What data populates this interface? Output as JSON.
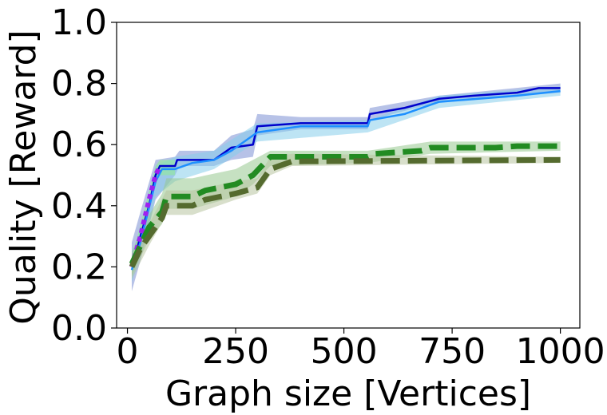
{
  "chart_data": {
    "type": "line",
    "title": "",
    "xlabel": "Graph size [Vertices]",
    "ylabel": "Quality [Reward]",
    "xlim": [
      -25,
      1045
    ],
    "ylim": [
      0.0,
      1.0
    ],
    "xticks": [
      0,
      250,
      500,
      750,
      1000
    ],
    "xtick_labels": [
      "0",
      "250",
      "500",
      "750",
      "1000"
    ],
    "yticks": [
      0.0,
      0.2,
      0.4,
      0.6,
      0.8,
      1.0
    ],
    "ytick_labels": [
      "0.0",
      "0.2",
      "0.4",
      "0.6",
      "0.8",
      "1.0"
    ],
    "grid": false,
    "legend": null,
    "series": [
      {
        "style": "solid",
        "color": "#0000cc",
        "band_color": "#7b8fd4",
        "points": [
          [
            10,
            0.2
          ],
          [
            15,
            0.22
          ],
          [
            30,
            0.3
          ],
          [
            50,
            0.4
          ],
          [
            65,
            0.5
          ],
          [
            75,
            0.53
          ],
          [
            110,
            0.53
          ],
          [
            115,
            0.55
          ],
          [
            200,
            0.55
          ],
          [
            240,
            0.59
          ],
          [
            290,
            0.6
          ],
          [
            300,
            0.66
          ],
          [
            400,
            0.67
          ],
          [
            555,
            0.67
          ],
          [
            560,
            0.7
          ],
          [
            640,
            0.72
          ],
          [
            720,
            0.75
          ],
          [
            800,
            0.76
          ],
          [
            900,
            0.77
          ],
          [
            950,
            0.785
          ],
          [
            1000,
            0.785
          ]
        ],
        "band": [
          [
            10,
            0.12,
            0.28
          ],
          [
            30,
            0.22,
            0.38
          ],
          [
            65,
            0.42,
            0.55
          ],
          [
            110,
            0.5,
            0.56
          ],
          [
            120,
            0.53,
            0.58
          ],
          [
            200,
            0.53,
            0.58
          ],
          [
            240,
            0.55,
            0.63
          ],
          [
            290,
            0.56,
            0.65
          ],
          [
            300,
            0.63,
            0.7
          ],
          [
            400,
            0.65,
            0.69
          ],
          [
            555,
            0.65,
            0.69
          ],
          [
            560,
            0.68,
            0.72
          ],
          [
            720,
            0.74,
            0.76
          ],
          [
            1000,
            0.77,
            0.8
          ]
        ]
      },
      {
        "style": "solid",
        "color": "#1e90ff",
        "band_color": "#87ceeb",
        "points": [
          [
            10,
            0.19
          ],
          [
            30,
            0.28
          ],
          [
            65,
            0.48
          ],
          [
            80,
            0.52
          ],
          [
            110,
            0.52
          ],
          [
            150,
            0.54
          ],
          [
            200,
            0.55
          ],
          [
            240,
            0.58
          ],
          [
            300,
            0.64
          ],
          [
            400,
            0.66
          ],
          [
            555,
            0.66
          ],
          [
            560,
            0.68
          ],
          [
            640,
            0.7
          ],
          [
            720,
            0.74
          ],
          [
            900,
            0.76
          ],
          [
            1000,
            0.775
          ]
        ],
        "band": [
          [
            10,
            0.15,
            0.24
          ],
          [
            30,
            0.23,
            0.33
          ],
          [
            65,
            0.43,
            0.53
          ],
          [
            110,
            0.48,
            0.56
          ],
          [
            200,
            0.52,
            0.58
          ],
          [
            300,
            0.61,
            0.67
          ],
          [
            555,
            0.64,
            0.68
          ],
          [
            720,
            0.72,
            0.76
          ],
          [
            1000,
            0.76,
            0.79
          ]
        ]
      },
      {
        "style": "dotted",
        "color": "#a020f0",
        "band_color": "#90ee90",
        "points": [
          [
            10,
            0.2
          ],
          [
            30,
            0.3
          ],
          [
            50,
            0.42
          ],
          [
            65,
            0.5
          ],
          [
            75,
            0.53
          ]
        ],
        "band": [
          [
            10,
            0.17,
            0.23
          ],
          [
            65,
            0.47,
            0.53
          ],
          [
            75,
            0.5,
            0.55
          ],
          [
            110,
            0.5,
            0.55
          ]
        ]
      },
      {
        "style": "dashed",
        "color": "#228b22",
        "band_color": "#98c990",
        "points": [
          [
            10,
            0.21
          ],
          [
            30,
            0.27
          ],
          [
            50,
            0.33
          ],
          [
            80,
            0.38
          ],
          [
            90,
            0.43
          ],
          [
            150,
            0.43
          ],
          [
            180,
            0.45
          ],
          [
            250,
            0.47
          ],
          [
            290,
            0.5
          ],
          [
            330,
            0.56
          ],
          [
            400,
            0.56
          ],
          [
            555,
            0.56
          ],
          [
            570,
            0.57
          ],
          [
            680,
            0.58
          ],
          [
            700,
            0.59
          ],
          [
            850,
            0.59
          ],
          [
            900,
            0.595
          ],
          [
            1000,
            0.595
          ]
        ],
        "band": [
          [
            10,
            0.17,
            0.25
          ],
          [
            50,
            0.29,
            0.37
          ],
          [
            80,
            0.34,
            0.44
          ],
          [
            90,
            0.39,
            0.49
          ],
          [
            150,
            0.39,
            0.49
          ],
          [
            250,
            0.43,
            0.52
          ],
          [
            290,
            0.47,
            0.55
          ],
          [
            330,
            0.53,
            0.58
          ],
          [
            555,
            0.54,
            0.58
          ],
          [
            700,
            0.57,
            0.61
          ],
          [
            1000,
            0.58,
            0.61
          ]
        ]
      },
      {
        "style": "dashed",
        "color": "#556b2f",
        "band_color": "#b8c4a0",
        "points": [
          [
            10,
            0.2
          ],
          [
            30,
            0.26
          ],
          [
            50,
            0.3
          ],
          [
            80,
            0.36
          ],
          [
            90,
            0.4
          ],
          [
            150,
            0.4
          ],
          [
            180,
            0.42
          ],
          [
            250,
            0.44
          ],
          [
            300,
            0.46
          ],
          [
            330,
            0.52
          ],
          [
            380,
            0.545
          ],
          [
            1000,
            0.55
          ]
        ],
        "band": [
          [
            10,
            0.16,
            0.24
          ],
          [
            50,
            0.27,
            0.34
          ],
          [
            90,
            0.37,
            0.45
          ],
          [
            150,
            0.37,
            0.45
          ],
          [
            250,
            0.42,
            0.48
          ],
          [
            300,
            0.44,
            0.49
          ],
          [
            330,
            0.5,
            0.56
          ],
          [
            380,
            0.53,
            0.57
          ],
          [
            1000,
            0.54,
            0.56
          ]
        ]
      }
    ]
  }
}
